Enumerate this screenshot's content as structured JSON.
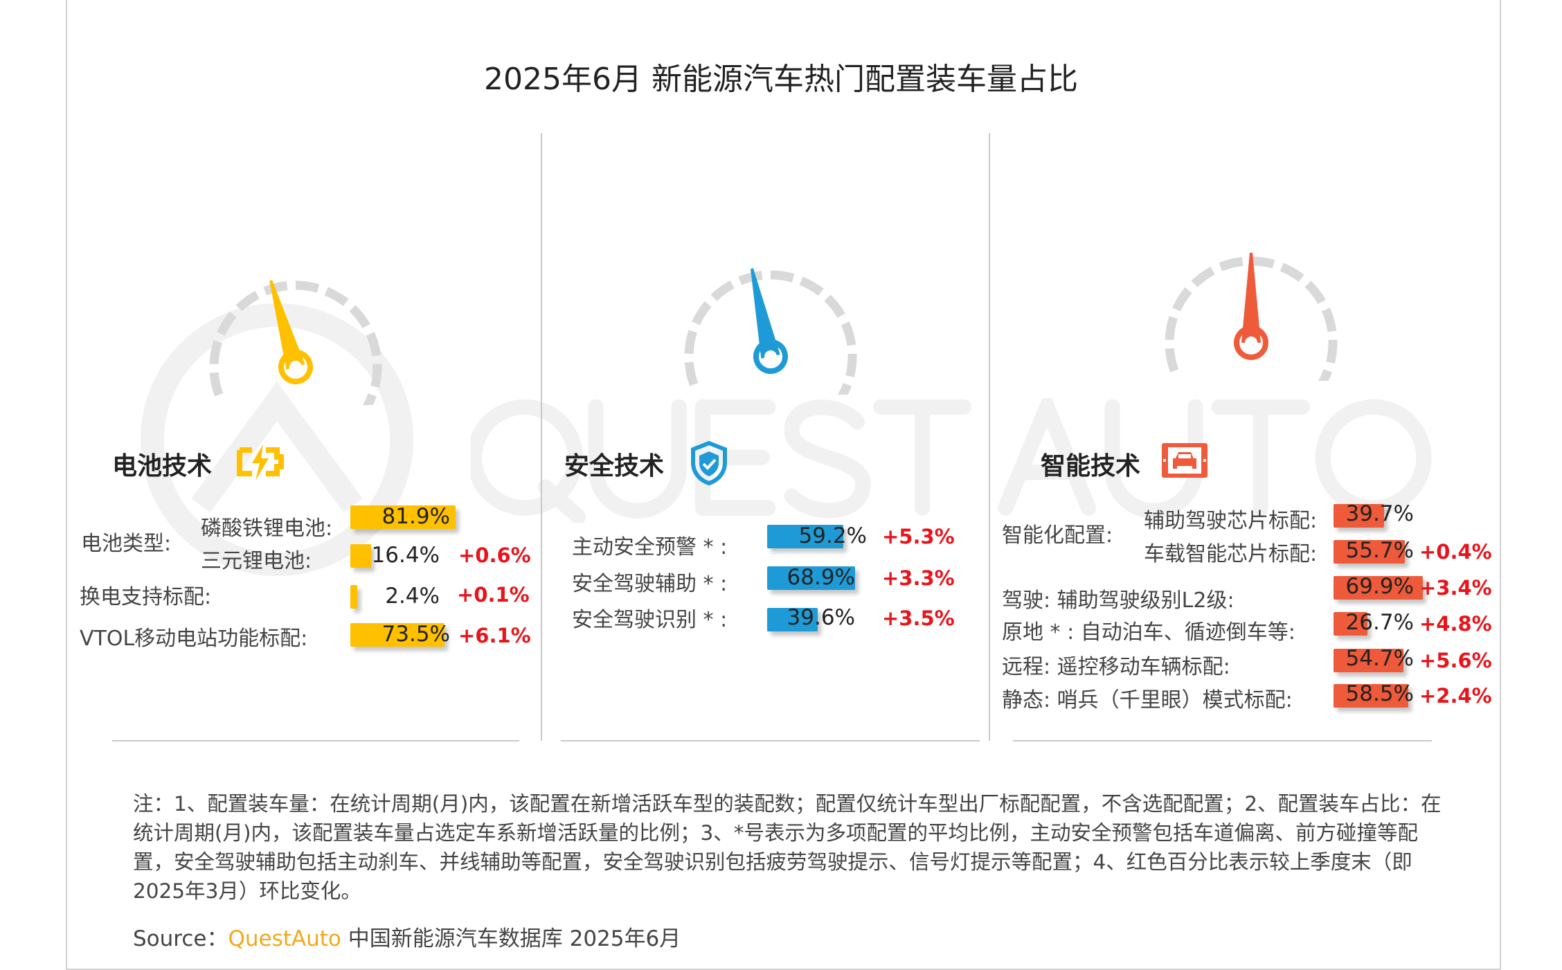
{
  "title": "2025年6月 新能源汽车热门配置装车量占比",
  "watermark": "QUEST AUTO",
  "colors": {
    "battery": "#FFC000",
    "safety": "#1E9BD7",
    "smart": "#EE5A3A",
    "change": "#E8141B",
    "gauge_ticks": "#D9D9D9"
  },
  "battery": {
    "title": "电池技术",
    "icon": "battery-bolt-icon",
    "group_label": "电池类型:",
    "rows": [
      {
        "label": "磷酸铁锂电池:",
        "value": 81.9,
        "value_text": "81.9%",
        "change": ""
      },
      {
        "label": "三元锂电池:",
        "value": 16.4,
        "value_text": "16.4%",
        "change": "+0.6%"
      },
      {
        "label": "换电支持标配:",
        "value": 2.4,
        "value_text": "2.4%",
        "change": "+0.1%"
      },
      {
        "label": "VTOL移动电站功能标配:",
        "value": 73.5,
        "value_text": "73.5%",
        "change": "+6.1%"
      }
    ]
  },
  "safety": {
    "title": "安全技术",
    "icon": "shield-check-icon",
    "rows": [
      {
        "label": "主动安全预警 * :",
        "value": 59.2,
        "value_text": "59.2%",
        "change": "+5.3%"
      },
      {
        "label": "安全驾驶辅助 * :",
        "value": 68.9,
        "value_text": "68.9%",
        "change": "+3.3%"
      },
      {
        "label": "安全驾驶识别 * :",
        "value": 39.6,
        "value_text": "39.6%",
        "change": "+3.5%"
      }
    ]
  },
  "smart": {
    "title": "智能技术",
    "icon": "car-screen-icon",
    "group_label": "智能化配置:",
    "rows": [
      {
        "label": "辅助驾驶芯片标配:",
        "value": 39.7,
        "value_text": "39.7%",
        "change": ""
      },
      {
        "label": "车载智能芯片标配:",
        "value": 55.7,
        "value_text": "55.7%",
        "change": "+0.4%"
      },
      {
        "label": "驾驶:   辅助驾驶级别L2级:",
        "value": 69.9,
        "value_text": "69.9%",
        "change": "+3.4%"
      },
      {
        "label": "原地 * :  自动泊车、循迹倒车等:",
        "value": 26.7,
        "value_text": "26.7%",
        "change": "+4.8%"
      },
      {
        "label": "远程:  遥控移动车辆标配:",
        "value": 54.7,
        "value_text": "54.7%",
        "change": "+5.6%"
      },
      {
        "label": "静态:  哨兵（千里眼）模式标配:",
        "value": 58.5,
        "value_text": "58.5%",
        "change": "+2.4%"
      }
    ]
  },
  "note": "注：1、配置装车量：在统计周期(月)内，该配置在新增活跃车型的装配数；配置仅统计车型出厂标配配置，不含选配配置；2、配置装车占比：在统计周期(月)内，该配置装车量占选定车系新增活跃量的比例；3、*号表示为多项配置的平均比例，主动安全预警包括车道偏离、前方碰撞等配置，安全驾驶辅助包括主动刹车、并线辅助等配置，安全驾驶识别包括疲劳驾驶提示、信号灯提示等配置；4、红色百分比表示较上季度末（即2025年3月）环比变化。",
  "source": {
    "prefix": "Source：",
    "brand": "QuestAuto",
    "text": " 中国新能源汽车数据库 2025年6月"
  }
}
